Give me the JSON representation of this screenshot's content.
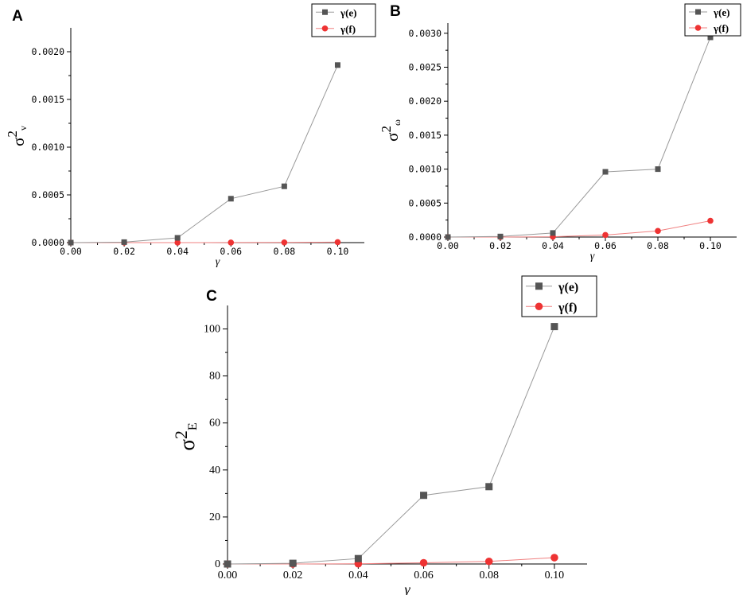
{
  "chart_data": [
    {
      "panel_label": "A",
      "type": "line",
      "x": [
        0.0,
        0.02,
        0.04,
        0.06,
        0.08,
        0.1
      ],
      "x_tick_labels": [
        "0.00",
        "0.02",
        "0.04",
        "0.06",
        "0.08",
        "0.10"
      ],
      "y_tick_values": [
        0,
        0.0005,
        0.001,
        0.0015,
        0.002
      ],
      "y_tick_labels": [
        "0.0000",
        "0.0005",
        "0.0010",
        "0.0015",
        "0.0020"
      ],
      "xlabel": "γ",
      "ylabel": {
        "sigma": "σ",
        "sup": "2",
        "sub": "v"
      },
      "xlim": [
        0,
        0.11
      ],
      "ylim": [
        0,
        0.00225
      ],
      "legend_position": "top-right",
      "series": [
        {
          "name": "γ(e)",
          "color": "#555555",
          "marker": "square",
          "values": [
            0,
            5e-06,
            5e-05,
            0.00046,
            0.00059,
            0.00186
          ]
        },
        {
          "name": "γ(f)",
          "color": "#ee3333",
          "marker": "circle",
          "values": [
            0,
            0,
            0,
            1e-06,
            2e-06,
            5e-06
          ]
        }
      ]
    },
    {
      "panel_label": "B",
      "type": "line",
      "x": [
        0.0,
        0.02,
        0.04,
        0.06,
        0.08,
        0.1
      ],
      "x_tick_labels": [
        "0.00",
        "0.02",
        "0.04",
        "0.06",
        "0.08",
        "0.10"
      ],
      "y_tick_values": [
        0,
        0.0005,
        0.001,
        0.0015,
        0.002,
        0.0025,
        0.003
      ],
      "y_tick_labels": [
        "0.0000",
        "0.0005",
        "0.0010",
        "0.0015",
        "0.0020",
        "0.0025",
        "0.0030"
      ],
      "xlabel": "γ",
      "ylabel": {
        "sigma": "σ",
        "sup": "2",
        "sub": "ω"
      },
      "xlim": [
        0,
        0.11
      ],
      "ylim": [
        0,
        0.00315
      ],
      "legend_position": "top-right",
      "series": [
        {
          "name": "γ(e)",
          "color": "#555555",
          "marker": "square",
          "values": [
            0,
            8e-06,
            6e-05,
            0.00096,
            0.001,
            0.00294
          ]
        },
        {
          "name": "γ(f)",
          "color": "#ee3333",
          "marker": "circle",
          "values": [
            0,
            0,
            5e-06,
            3e-05,
            9e-05,
            0.00024
          ]
        }
      ]
    },
    {
      "panel_label": "C",
      "type": "line",
      "x": [
        0.0,
        0.02,
        0.04,
        0.06,
        0.08,
        0.1
      ],
      "x_tick_labels": [
        "0.00",
        "0.02",
        "0.04",
        "0.06",
        "0.08",
        "0.10"
      ],
      "y_tick_values": [
        0,
        20,
        40,
        60,
        80,
        100
      ],
      "y_tick_labels": [
        "0",
        "20",
        "40",
        "60",
        "80",
        "100"
      ],
      "xlabel": "γ",
      "ylabel": {
        "sigma": "σ",
        "sup": "2",
        "sub": "E"
      },
      "xlim": [
        0,
        0.11
      ],
      "ylim": [
        0,
        110
      ],
      "legend_position": "top-right",
      "series": [
        {
          "name": "γ(e)",
          "color": "#555555",
          "marker": "square",
          "values": [
            0,
            0.3,
            2.3,
            29.2,
            32.9,
            101
          ]
        },
        {
          "name": "γ(f)",
          "color": "#ee3333",
          "marker": "circle",
          "values": [
            0,
            0,
            0.1,
            0.5,
            1.1,
            2.7
          ]
        }
      ]
    }
  ]
}
